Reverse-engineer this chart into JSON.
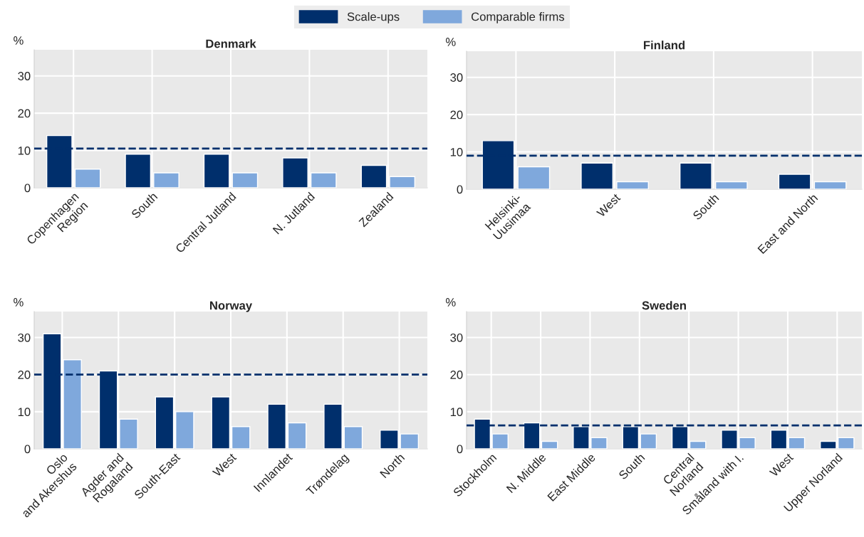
{
  "chart_data": [
    {
      "type": "bar",
      "title": "Denmark",
      "ylabel": "%",
      "categories": [
        "Copenhagen\nRegion",
        "South",
        "Central Jutland",
        "N. Jutland",
        "Zealand"
      ],
      "series": [
        {
          "name": "Scale-ups",
          "color": "#002f6c",
          "values": [
            14,
            9,
            9,
            8,
            6
          ]
        },
        {
          "name": "Comparable firms",
          "color": "#7fa8dc",
          "values": [
            5,
            4,
            4,
            4,
            3
          ]
        }
      ],
      "ylim": [
        0,
        37
      ],
      "yticks": [
        0,
        10,
        20,
        30
      ],
      "grid": true,
      "legend": "top",
      "ref_lines": [
        {
          "axis": "y",
          "value": 10.5,
          "color": "#002f6c",
          "line_style": "dashed"
        }
      ]
    },
    {
      "type": "bar",
      "title": "Finland",
      "ylabel": "%",
      "categories": [
        "Helsinki-\nUusimaa",
        "West",
        "South",
        "East and North"
      ],
      "series": [
        {
          "color": "#002f6c",
          "values": [
            13,
            7,
            7,
            4
          ]
        },
        {
          "color": "#7fa8dc",
          "values": [
            6,
            2,
            2,
            2
          ]
        }
      ],
      "ylim": [
        0,
        37
      ],
      "yticks": [
        0,
        10,
        20,
        30
      ],
      "grid": true,
      "ref_lines": [
        {
          "axis": "y",
          "value": 9,
          "color": "#002f6c",
          "line_style": "dashed"
        }
      ]
    },
    {
      "type": "bar",
      "title": "Norway",
      "ylabel": "%",
      "categories": [
        "Oslo\nand Akershus",
        "Agder and\nRogaland",
        "South-East",
        "West",
        "Innlandet",
        "Trøndelag",
        "North"
      ],
      "series": [
        {
          "color": "#002f6c",
          "values": [
            31,
            21,
            14,
            14,
            12,
            12,
            5
          ]
        },
        {
          "color": "#7fa8dc",
          "values": [
            24,
            8,
            10,
            6,
            7,
            6,
            4
          ]
        }
      ],
      "ylim": [
        0,
        37
      ],
      "yticks": [
        0,
        10,
        20,
        30
      ],
      "grid": true,
      "ref_lines": [
        {
          "axis": "y",
          "value": 20,
          "color": "#002f6c",
          "line_style": "dashed"
        }
      ]
    },
    {
      "type": "bar",
      "title": "Sweden",
      "ylabel": "%",
      "categories": [
        "Stockholm",
        "N. Middle",
        "East Middle",
        "South",
        "Central\nNorland",
        "Småland with I.",
        "West",
        "Upper Norland"
      ],
      "series": [
        {
          "color": "#002f6c",
          "values": [
            8,
            7,
            6,
            6,
            6,
            5,
            5,
            2
          ]
        },
        {
          "color": "#7fa8dc",
          "values": [
            4,
            2,
            3,
            4,
            2,
            3,
            3,
            3
          ]
        }
      ],
      "ylim": [
        0,
        37
      ],
      "yticks": [
        0,
        10,
        20,
        30
      ],
      "grid": true,
      "ref_lines": [
        {
          "axis": "y",
          "value": 6.3,
          "color": "#002f6c",
          "line_style": "dashed"
        }
      ]
    }
  ]
}
